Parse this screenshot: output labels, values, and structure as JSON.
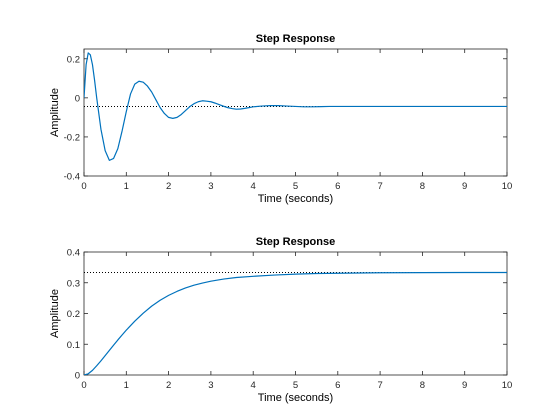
{
  "figure_background": "#ffffff",
  "chart_data": [
    {
      "type": "line",
      "title": "Step Response",
      "xlabel": "Time (seconds)",
      "ylabel": "Amplitude",
      "xlim": [
        0,
        10
      ],
      "ylim": [
        -0.4,
        0.25
      ],
      "xticks": [
        0,
        1,
        2,
        3,
        4,
        5,
        6,
        7,
        8,
        9,
        10
      ],
      "xtick_labels": [
        "0",
        "1",
        "2",
        "3",
        "4",
        "5",
        "6",
        "7",
        "8",
        "9",
        "10"
      ],
      "yticks": [
        -0.4,
        -0.2,
        0,
        0.2
      ],
      "ytick_labels": [
        "-0.4",
        "-0.2",
        "0",
        "0.2"
      ],
      "grid": false,
      "series": [
        {
          "color": "#0072bd",
          "x": [
            0,
            0.05,
            0.1,
            0.15,
            0.2,
            0.25,
            0.3,
            0.4,
            0.5,
            0.6,
            0.7,
            0.8,
            0.9,
            1.0,
            1.1,
            1.2,
            1.3,
            1.4,
            1.5,
            1.6,
            1.7,
            1.8,
            1.9,
            2.0,
            2.1,
            2.2,
            2.3,
            2.4,
            2.5,
            2.6,
            2.7,
            2.8,
            2.9,
            3.0,
            3.1,
            3.2,
            3.3,
            3.4,
            3.5,
            3.6,
            3.7,
            3.8,
            3.9,
            4.0,
            4.2,
            4.4,
            4.6,
            4.8,
            5.0,
            5.2,
            5.4,
            5.6,
            5.8,
            6.0,
            6.5,
            7.0,
            7.5,
            8.0,
            8.5,
            9.0,
            9.5,
            10.0
          ],
          "y": [
            0,
            0.17,
            0.23,
            0.22,
            0.17,
            0.09,
            0.0,
            -0.16,
            -0.27,
            -0.32,
            -0.31,
            -0.26,
            -0.17,
            -0.07,
            0.02,
            0.07,
            0.085,
            0.08,
            0.06,
            0.03,
            -0.01,
            -0.05,
            -0.08,
            -0.1,
            -0.105,
            -0.1,
            -0.085,
            -0.065,
            -0.045,
            -0.03,
            -0.02,
            -0.015,
            -0.017,
            -0.02,
            -0.027,
            -0.035,
            -0.043,
            -0.05,
            -0.055,
            -0.058,
            -0.057,
            -0.054,
            -0.05,
            -0.046,
            -0.042,
            -0.04,
            -0.04,
            -0.042,
            -0.044,
            -0.046,
            -0.046,
            -0.045,
            -0.044,
            -0.044,
            -0.044,
            -0.044,
            -0.044,
            -0.044,
            -0.044,
            -0.044,
            -0.044,
            -0.044
          ]
        }
      ],
      "steady_state": {
        "value": -0.044,
        "style": "dotted",
        "color": "#000000"
      }
    },
    {
      "type": "line",
      "title": "Step Response",
      "xlabel": "Time (seconds)",
      "ylabel": "Amplitude",
      "xlim": [
        0,
        10
      ],
      "ylim": [
        0,
        0.4
      ],
      "xticks": [
        0,
        1,
        2,
        3,
        4,
        5,
        6,
        7,
        8,
        9,
        10
      ],
      "xtick_labels": [
        "0",
        "1",
        "2",
        "3",
        "4",
        "5",
        "6",
        "7",
        "8",
        "9",
        "10"
      ],
      "yticks": [
        0,
        0.1,
        0.2,
        0.3,
        0.4
      ],
      "ytick_labels": [
        "0",
        "0.1",
        "0.2",
        "0.3",
        "0.4"
      ],
      "grid": false,
      "series": [
        {
          "color": "#0072bd",
          "x": [
            0,
            0.1,
            0.2,
            0.3,
            0.4,
            0.5,
            0.6,
            0.7,
            0.8,
            0.9,
            1.0,
            1.2,
            1.4,
            1.6,
            1.8,
            2.0,
            2.2,
            2.4,
            2.6,
            2.8,
            3.0,
            3.3,
            3.6,
            4.0,
            4.5,
            5.0,
            5.5,
            6.0,
            7.0,
            8.0,
            9.0,
            10.0
          ],
          "y": [
            0,
            0.004,
            0.015,
            0.03,
            0.046,
            0.063,
            0.08,
            0.097,
            0.114,
            0.13,
            0.146,
            0.175,
            0.201,
            0.224,
            0.243,
            0.259,
            0.272,
            0.283,
            0.292,
            0.299,
            0.305,
            0.312,
            0.317,
            0.321,
            0.325,
            0.328,
            0.33,
            0.331,
            0.3325,
            0.333,
            0.3333,
            0.3333
          ]
        }
      ],
      "steady_state": {
        "value": 0.3333,
        "style": "dotted",
        "color": "#000000"
      }
    }
  ]
}
